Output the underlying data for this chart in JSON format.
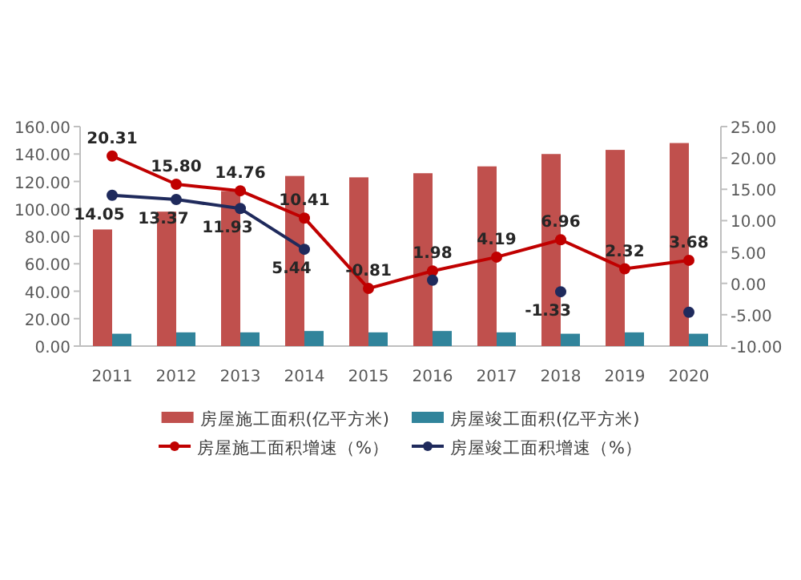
{
  "chart_data": {
    "type": "bar",
    "categories": [
      "2011",
      "2012",
      "2013",
      "2014",
      "2015",
      "2016",
      "2017",
      "2018",
      "2019",
      "2020"
    ],
    "series": [
      {
        "name": "房屋施工面积(亿平方米)",
        "color": "#c0504d",
        "values": [
          85,
          98,
          113,
          124,
          123,
          126,
          131,
          140,
          143,
          148
        ]
      },
      {
        "name": "房屋竣工面积(亿平方米)",
        "color": "#31849b",
        "values": [
          9,
          10,
          10,
          11,
          10,
          11,
          10,
          9,
          10,
          9
        ]
      },
      {
        "name": "房屋施工面积增速（%）",
        "type": "line",
        "axis": "y2",
        "color": "#c00000",
        "values": [
          20.31,
          15.8,
          14.76,
          10.41,
          -0.81,
          1.98,
          4.19,
          6.96,
          2.32,
          3.68
        ],
        "value_labels": [
          "20.31",
          "15.80",
          "14.76",
          "10.41",
          "-0.81",
          "1.98",
          "4.19",
          "6.96",
          "2.32",
          "3.68"
        ]
      },
      {
        "name": "房屋竣工面积增速（%）",
        "type": "line",
        "axis": "y2",
        "color": "#1f2a5c",
        "values": [
          14.05,
          13.37,
          11.93,
          5.44,
          null,
          0.5,
          null,
          -1.33,
          null,
          -4.6
        ],
        "value_labels": [
          "14.05",
          "13.37",
          "11.93",
          "5.44",
          null,
          null,
          null,
          "-1.33",
          null,
          null
        ]
      }
    ],
    "ylim": [
      0,
      160
    ],
    "yticks": [
      {
        "value": 0,
        "label": "0.00"
      },
      {
        "value": 20,
        "label": "20.00"
      },
      {
        "value": 40,
        "label": "40.00"
      },
      {
        "value": 60,
        "label": "60.00"
      },
      {
        "value": 80,
        "label": "80.00"
      },
      {
        "value": 100,
        "label": "100.00"
      },
      {
        "value": 120,
        "label": "120.00"
      },
      {
        "value": 140,
        "label": "140.00"
      },
      {
        "value": 160,
        "label": "160.00"
      }
    ],
    "y2lim": [
      -10,
      25
    ],
    "y2ticks": [
      {
        "value": -10,
        "label": "-10.00"
      },
      {
        "value": -5,
        "label": "-5.00"
      },
      {
        "value": 0,
        "label": "0.00"
      },
      {
        "value": 5,
        "label": "5.00"
      },
      {
        "value": 10,
        "label": "10.00"
      },
      {
        "value": 15,
        "label": "15.00"
      },
      {
        "value": 20,
        "label": "20.00"
      },
      {
        "value": 25,
        "label": "25.00"
      }
    ],
    "legend": "bottom",
    "marker": "circle",
    "grid": false
  }
}
